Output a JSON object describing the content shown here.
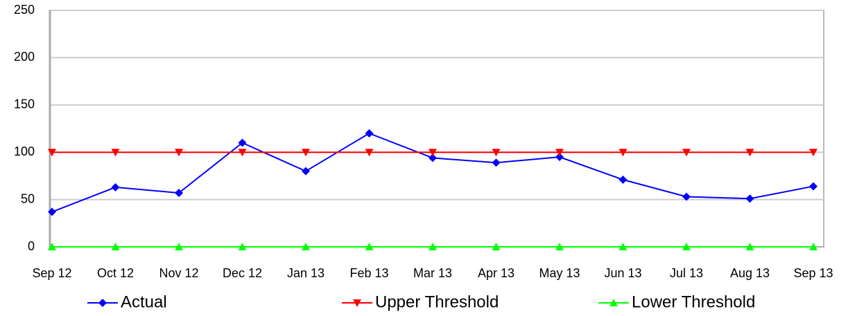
{
  "chart_data": {
    "type": "line",
    "categories": [
      "Sep 12",
      "Oct 12",
      "Nov 12",
      "Dec 12",
      "Jan 13",
      "Feb 13",
      "Mar 13",
      "Apr 13",
      "May 13",
      "Jun 13",
      "Jul 13",
      "Aug 13",
      "Sep 13"
    ],
    "series": [
      {
        "name": "Actual",
        "color": "#0000ff",
        "marker": "diamond",
        "values": [
          37,
          63,
          57,
          110,
          80,
          120,
          94,
          89,
          95,
          71,
          53,
          51,
          64
        ]
      },
      {
        "name": "Upper Threshold",
        "color": "#ff0000",
        "marker": "triangle-down",
        "values": [
          100,
          100,
          100,
          100,
          100,
          100,
          100,
          100,
          100,
          100,
          100,
          100,
          100
        ]
      },
      {
        "name": "Lower Threshold",
        "color": "#00ff00",
        "marker": "triangle-up",
        "values": [
          0,
          0,
          0,
          0,
          0,
          0,
          0,
          0,
          0,
          0,
          0,
          0,
          0
        ]
      }
    ],
    "ylim": [
      0,
      250
    ],
    "yticks": [
      0,
      50,
      100,
      150,
      200,
      250
    ],
    "grid": true,
    "legend": "bottom"
  }
}
